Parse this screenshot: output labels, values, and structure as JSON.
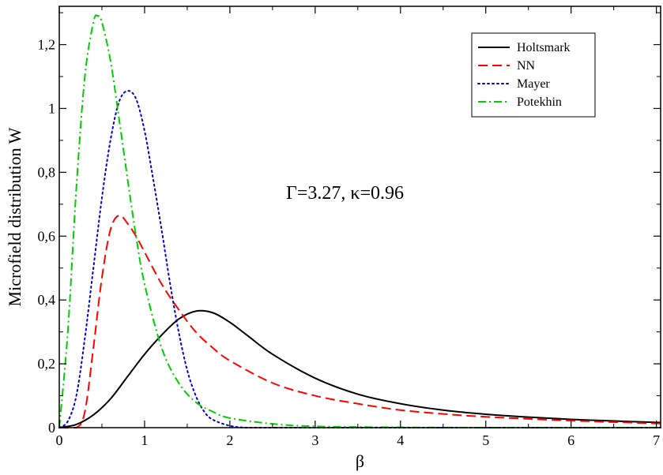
{
  "chart_data": {
    "type": "line",
    "xlabel": "β",
    "ylabel": "Microfield distribution W",
    "xlim": [
      0,
      7.05
    ],
    "ylim": [
      0,
      1.32
    ],
    "x_ticks": [
      0,
      1,
      2,
      3,
      4,
      5,
      6,
      7
    ],
    "x_tick_labels": [
      "0",
      "1",
      "2",
      "3",
      "4",
      "5",
      "6",
      "7"
    ],
    "y_ticks": [
      0,
      0.2,
      0.4,
      0.6,
      0.8,
      1.0,
      1.2
    ],
    "y_tick_labels": [
      "0",
      "0,2",
      "0,4",
      "0,6",
      "0,8",
      "1",
      "1,2"
    ],
    "annotation": "Γ=3.27, κ=0.96",
    "legend_position": "top-right",
    "grid": false,
    "series": [
      {
        "name": "Holtsmark",
        "color": "#000000",
        "dash": "solid",
        "x": [
          0,
          0.2,
          0.4,
          0.6,
          0.8,
          1.0,
          1.2,
          1.4,
          1.6,
          1.8,
          2.0,
          2.2,
          2.5,
          3.0,
          3.5,
          4.0,
          4.5,
          5.0,
          5.5,
          6.0,
          6.5,
          7.05
        ],
        "y": [
          0,
          0.01,
          0.04,
          0.09,
          0.16,
          0.23,
          0.29,
          0.34,
          0.365,
          0.36,
          0.33,
          0.29,
          0.23,
          0.155,
          0.105,
          0.075,
          0.055,
          0.042,
          0.033,
          0.026,
          0.021,
          0.016
        ]
      },
      {
        "name": "NN",
        "color": "#ff0000",
        "dash": "dashed",
        "x": [
          0,
          0.2,
          0.3,
          0.4,
          0.5,
          0.6,
          0.7,
          0.8,
          0.9,
          1.0,
          1.2,
          1.4,
          1.6,
          1.8,
          2.0,
          2.5,
          3.0,
          3.5,
          4.0,
          4.5,
          5.0,
          6.0,
          7.05
        ],
        "y": [
          0,
          0.0,
          0.05,
          0.25,
          0.47,
          0.62,
          0.665,
          0.64,
          0.6,
          0.55,
          0.45,
          0.37,
          0.3,
          0.25,
          0.21,
          0.14,
          0.1,
          0.075,
          0.055,
          0.043,
          0.034,
          0.022,
          0.013
        ]
      },
      {
        "name": "Mayer",
        "color": "#0000cc",
        "dash": "dotted",
        "x": [
          0,
          0.1,
          0.2,
          0.3,
          0.4,
          0.5,
          0.6,
          0.7,
          0.8,
          0.9,
          1.0,
          1.1,
          1.2,
          1.3,
          1.4,
          1.5,
          1.6,
          1.7,
          1.8,
          2.0,
          2.2,
          2.5,
          3.0,
          7.05
        ],
        "y": [
          0,
          0.02,
          0.1,
          0.28,
          0.5,
          0.72,
          0.9,
          1.02,
          1.055,
          1.03,
          0.93,
          0.78,
          0.62,
          0.45,
          0.3,
          0.18,
          0.1,
          0.05,
          0.025,
          0.006,
          0.0,
          0.0,
          0.0,
          0.0
        ]
      },
      {
        "name": "Potekhin",
        "color": "#00cc00",
        "dash": "dash-dot",
        "x": [
          0,
          0.1,
          0.2,
          0.3,
          0.4,
          0.45,
          0.5,
          0.6,
          0.7,
          0.8,
          0.9,
          1.0,
          1.2,
          1.4,
          1.6,
          1.8,
          2.0,
          2.5,
          3.0,
          4.0,
          5.0,
          6.0,
          7.05
        ],
        "y": [
          0,
          0.3,
          0.75,
          1.1,
          1.27,
          1.29,
          1.27,
          1.15,
          0.97,
          0.78,
          0.6,
          0.45,
          0.25,
          0.14,
          0.08,
          0.05,
          0.03,
          0.012,
          0.004,
          0.001,
          0.0,
          0.0,
          0.0
        ]
      }
    ]
  }
}
